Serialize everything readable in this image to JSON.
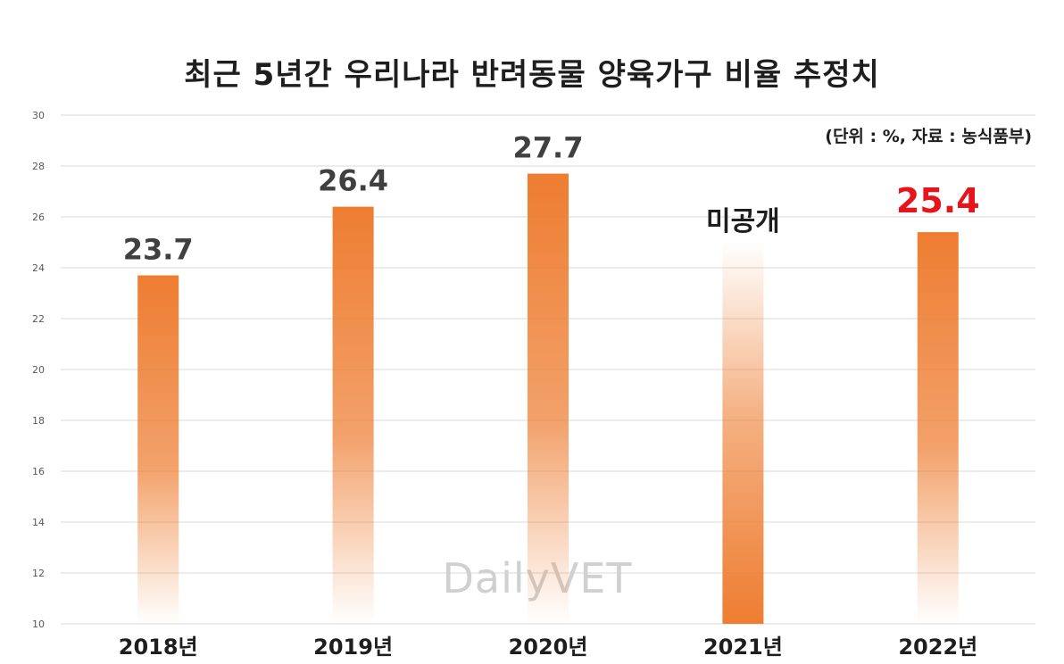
{
  "chart_data": {
    "type": "bar",
    "title": "최근 5년간 우리나라 반려동물 양육가구 비율 추정치",
    "subtitle": "(단위 : %, 자료 : 농식품부)",
    "categories": [
      "2018년",
      "2019년",
      "2020년",
      "2021년",
      "2022년"
    ],
    "values": [
      23.7,
      26.4,
      27.7,
      null,
      25.4
    ],
    "data_labels": [
      "23.7",
      "26.4",
      "27.7",
      "미공개",
      "25.4"
    ],
    "ylim": [
      10,
      30
    ],
    "yticks": [
      "10",
      "12",
      "14",
      "16",
      "18",
      "20",
      "22",
      "24",
      "26",
      "28",
      "30"
    ],
    "xlabel": "",
    "ylabel": "",
    "grid": true,
    "legend": "none",
    "watermark": "DailyVET",
    "colors": {
      "bar": "#ee7d31",
      "label": "#404040",
      "highlight_label": "#e8141b",
      "gridline": "#d9d9d9",
      "axis_text": "#595959"
    }
  }
}
